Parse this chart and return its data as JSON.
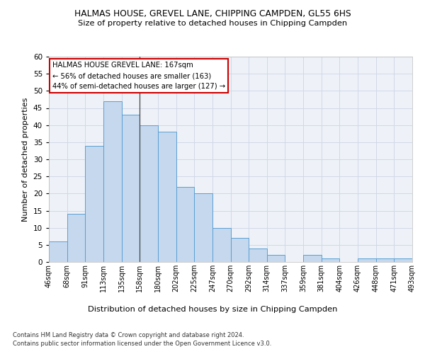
{
  "title": "HALMAS HOUSE, GREVEL LANE, CHIPPING CAMPDEN, GL55 6HS",
  "subtitle": "Size of property relative to detached houses in Chipping Campden",
  "xlabel": "Distribution of detached houses by size in Chipping Campden",
  "ylabel": "Number of detached properties",
  "bar_values": [
    6,
    14,
    34,
    47,
    43,
    40,
    38,
    22,
    20,
    10,
    7,
    4,
    2,
    0,
    2,
    1,
    0,
    1,
    1,
    1
  ],
  "bar_edge_labels": [
    "46sqm",
    "68sqm",
    "91sqm",
    "113sqm",
    "135sqm",
    "158sqm",
    "180sqm",
    "202sqm",
    "225sqm",
    "247sqm",
    "270sqm",
    "292sqm",
    "314sqm",
    "337sqm",
    "359sqm",
    "381sqm",
    "404sqm",
    "426sqm",
    "448sqm",
    "471sqm",
    "493sqm"
  ],
  "bar_color": "#c5d8ed",
  "bar_edge_color": "#5a9fd4",
  "grid_color": "#d0d8e8",
  "background_color": "#eef2f8",
  "annotation_line1": "HALMAS HOUSE GREVEL LANE: 167sqm",
  "annotation_line2": "← 56% of detached houses are smaller (163)",
  "annotation_line3": "44% of semi-detached houses are larger (127) →",
  "annotation_box_color": "#ffffff",
  "annotation_box_edge": "#cc0000",
  "vline_x": 4.5,
  "ylim_max": 60,
  "footer_line1": "Contains HM Land Registry data © Crown copyright and database right 2024.",
  "footer_line2": "Contains public sector information licensed under the Open Government Licence v3.0."
}
